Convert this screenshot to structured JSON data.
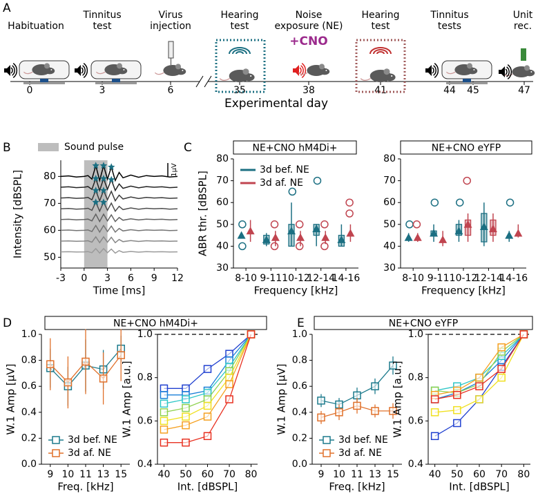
{
  "panel_labels": [
    "A",
    "B",
    "C",
    "D",
    "E"
  ],
  "timeline": {
    "stages": [
      [
        "Habituation"
      ],
      [
        "Tinnitus",
        "test"
      ],
      [
        "Virus",
        "injection"
      ],
      [
        "Hearing",
        "test"
      ],
      [
        "Noise",
        "exposure (NE)"
      ],
      [
        "Hearing",
        "test"
      ],
      [
        "Tinnitus",
        "tests"
      ],
      [
        "Unit",
        "rec."
      ]
    ],
    "cno_label": "+CNO",
    "ticks": [
      "0",
      "3",
      "6",
      "35",
      "38",
      "41",
      "44",
      "45",
      "47"
    ],
    "axis_label": "Experimental day"
  },
  "chart_data": [
    {
      "type": "line",
      "x": [
        -3,
        -2,
        -1,
        0,
        0.5,
        1,
        1.5,
        2,
        2.5,
        3,
        3.5,
        4,
        4.5,
        5,
        6,
        7,
        8,
        9,
        10,
        11,
        12
      ],
      "series": [
        {
          "color": "#000000",
          "values": [
            80,
            80.2,
            79.8,
            80,
            80.3,
            79,
            84,
            78.5,
            84,
            79,
            83.5,
            78.5,
            81.5,
            79.5,
            80.5,
            79.7,
            80.3,
            80,
            80.2,
            79.8,
            80
          ]
        },
        {
          "color": "#222222",
          "values": [
            76,
            76.16,
            75.84,
            76,
            76.24,
            75.2,
            79.2,
            74.8,
            79.2,
            75.2,
            78.8,
            74.8,
            77.2,
            75.6,
            76.4,
            75.76,
            76.24,
            76,
            76.16,
            75.84,
            76
          ]
        },
        {
          "color": "#3a3a3a",
          "values": [
            72,
            72.14,
            71.86,
            72,
            72.21,
            71.3,
            74.8,
            70.95,
            74.8,
            71.3,
            74.45,
            70.95,
            73.05,
            71.65,
            72.35,
            71.79,
            72.21,
            72,
            72.14,
            71.86,
            72
          ]
        },
        {
          "color": "#4d4d4d",
          "values": [
            68,
            68.12,
            67.88,
            68,
            68.18,
            67.4,
            70.4,
            67.1,
            70.4,
            67.4,
            70.1,
            67.1,
            68.9,
            67.7,
            68.3,
            67.82,
            68.18,
            68,
            68.12,
            67.88,
            68
          ]
        },
        {
          "color": "#606060",
          "values": [
            64,
            64.1,
            63.9,
            64,
            64.15,
            63.5,
            66,
            63.25,
            66,
            63.5,
            65.75,
            63.25,
            64.75,
            63.75,
            64.25,
            63.85,
            64.15,
            64,
            64.1,
            63.9,
            64
          ]
        },
        {
          "color": "#737373",
          "values": [
            60,
            60.09,
            59.91,
            60,
            60.14,
            59.55,
            61.8,
            59.33,
            61.8,
            59.55,
            61.58,
            59.33,
            60.68,
            59.78,
            60.23,
            59.87,
            60.14,
            60,
            60.09,
            59.91,
            60
          ]
        },
        {
          "color": "#868686",
          "values": [
            56,
            56.08,
            55.92,
            56,
            56.12,
            55.6,
            57.6,
            55.4,
            57.6,
            55.6,
            57.4,
            55.4,
            56.6,
            55.8,
            56.2,
            55.88,
            56.12,
            56,
            56.08,
            55.92,
            56
          ]
        },
        {
          "color": "#9a9a9a",
          "values": [
            52,
            52.06,
            51.94,
            52,
            52.09,
            51.7,
            53.2,
            51.55,
            53.2,
            51.7,
            53.05,
            51.55,
            52.45,
            51.85,
            52.15,
            51.91,
            52.09,
            52,
            52.06,
            51.94,
            52
          ]
        }
      ],
      "peaks": {
        "color": "#1b6f82",
        "x": [
          1.5,
          2.5,
          3.5,
          1.5,
          2.5,
          3.5,
          1.5,
          2.5,
          1.5,
          2.5
        ],
        "y": [
          84,
          84,
          83.5,
          79.2,
          79.2,
          78.8,
          74.8,
          74.8,
          70.4,
          70.4
        ]
      },
      "shaded_region": {
        "range": [
          0,
          3
        ],
        "label": "Sound pulse",
        "color": "#bdbdbd"
      },
      "scale_bar_label": "1µV",
      "xlim": [
        -3,
        12
      ],
      "ylim": [
        46,
        86
      ],
      "xticks": [
        -3,
        0,
        3,
        6,
        9,
        12
      ],
      "yticks": [
        50,
        60,
        70,
        80
      ],
      "xlabel": "Time [ms]",
      "ylabel": "Intensity [dBSPL]"
    },
    {
      "type": "box",
      "title": "NE+CNO hM4Di+",
      "categories": [
        "8-10",
        "9-11",
        "10-12",
        "12-14",
        "14-16"
      ],
      "series": [
        {
          "name": "3d bef. NE",
          "color": "#1b6f82",
          "means": [
            45,
            43,
            47,
            48,
            43
          ],
          "box_low": [
            null,
            41,
            40,
            45,
            40
          ],
          "box_high": [
            null,
            45,
            50,
            50,
            45
          ],
          "whisker_low": [
            null,
            40,
            40,
            40,
            40
          ],
          "whisker_high": [
            null,
            46,
            60,
            50,
            50
          ],
          "outliers": [
            [
              40,
              50
            ],
            [],
            [
              65
            ],
            [
              70
            ],
            []
          ]
        },
        {
          "name": "3d af. NE",
          "color": "#c0444f",
          "means": [
            47,
            44,
            44,
            44,
            46
          ],
          "box_low": [
            null,
            null,
            null,
            null,
            null
          ],
          "box_high": [
            null,
            null,
            null,
            null,
            null
          ],
          "whisker_low": [
            42,
            40,
            40,
            41,
            42
          ],
          "whisker_high": [
            52,
            47,
            47,
            47,
            50
          ],
          "outliers": [
            [],
            [
              40,
              50
            ],
            [
              40,
              50
            ],
            [
              40,
              50
            ],
            [
              55,
              60
            ]
          ]
        }
      ],
      "legend": "upper left",
      "ylim": [
        30,
        80
      ],
      "yticks": [
        30,
        40,
        50,
        60,
        70,
        80
      ],
      "xlabel": "Frequency [kHz]",
      "ylabel": "ABR thr. [dBSPL]"
    },
    {
      "type": "box",
      "title": "NE+CNO eYFP",
      "categories": [
        "8-10",
        "9-11",
        "10-12",
        "12-14",
        "14-16"
      ],
      "series": [
        {
          "color": "#1b6f82",
          "means": [
            44,
            46,
            47,
            49,
            45
          ],
          "box_low": [
            null,
            45,
            45,
            42,
            null
          ],
          "box_high": [
            null,
            47,
            50,
            55,
            null
          ],
          "whisker_low": [
            42,
            42,
            42,
            40,
            42
          ],
          "whisker_high": [
            46,
            50,
            52,
            60,
            47
          ],
          "outliers": [
            [
              50
            ],
            [
              60
            ],
            [
              60
            ],
            [],
            [
              60
            ]
          ]
        },
        {
          "color": "#c0444f",
          "means": [
            44,
            43,
            50,
            48,
            46
          ],
          "box_low": [
            null,
            null,
            45,
            45,
            null
          ],
          "box_high": [
            null,
            null,
            52,
            52,
            null
          ],
          "whisker_low": [
            42,
            40,
            42,
            42,
            44
          ],
          "whisker_high": [
            46,
            47,
            55,
            55,
            50
          ],
          "outliers": [
            [
              50
            ],
            [],
            [
              70
            ],
            [],
            []
          ]
        }
      ],
      "ylim": [
        30,
        80
      ],
      "yticks": [
        30,
        40,
        50,
        60,
        70,
        80
      ],
      "xlabel": "Frequency [kHz]"
    },
    {
      "type": "line",
      "title": "NE+CNO hM4Di+",
      "marker": "square",
      "categories": [
        "9",
        "10",
        "11",
        "13",
        "15"
      ],
      "series": [
        {
          "name": "3d bef. NE",
          "color": "#1b7a8c",
          "values": [
            0.74,
            0.6,
            0.76,
            0.73,
            0.89
          ],
          "errors": [
            0.15,
            0.15,
            0.2,
            0.15,
            0.1
          ]
        },
        {
          "name": "3d af. NE",
          "color": "#e0702a",
          "values": [
            0.77,
            0.63,
            0.79,
            0.66,
            0.84
          ],
          "errors": [
            0.2,
            0.2,
            0.25,
            0.2,
            0.2
          ]
        }
      ],
      "legend": "lower left",
      "ylim": [
        0,
        1
      ],
      "yticks": [
        {
          "value": 0,
          "label": "0.0"
        },
        0.2,
        0.4,
        0.6,
        0.8,
        {
          "value": 1,
          "label": "1.0"
        }
      ],
      "xlabel": "Freq. [kHz]",
      "ylabel": "W.1 Amp [µV]"
    },
    {
      "type": "line",
      "marker": "square",
      "x": [
        40,
        50,
        60,
        70,
        80
      ],
      "series": [
        {
          "color": "#2040d0",
          "values": [
            0.75,
            0.75,
            0.84,
            0.91,
            1
          ]
        },
        {
          "color": "#1a80d8",
          "values": [
            0.72,
            0.72,
            0.74,
            0.88,
            1
          ]
        },
        {
          "color": "#2cc6c6",
          "values": [
            0.68,
            0.7,
            0.73,
            0.85,
            1
          ]
        },
        {
          "color": "#8fd14f",
          "values": [
            0.64,
            0.66,
            0.7,
            0.83,
            1
          ]
        },
        {
          "color": "#f0e020",
          "values": [
            0.6,
            0.62,
            0.67,
            0.8,
            1
          ]
        },
        {
          "color": "#f5a020",
          "values": [
            0.56,
            0.58,
            0.62,
            0.77,
            1
          ]
        },
        {
          "color": "#e83020",
          "values": [
            0.5,
            0.5,
            0.53,
            0.7,
            1
          ]
        }
      ],
      "reference_line": 1,
      "xlim": [
        37,
        83
      ],
      "xticks": [
        40,
        50,
        60,
        70,
        80
      ],
      "ylim": [
        0.4,
        1
      ],
      "yticks": [
        0.4,
        0.6,
        0.8,
        {
          "value": 1,
          "label": "1.0"
        }
      ],
      "xlabel": "Int. [dBSPL]",
      "ylabel": "W.1 Amp [a.u.]"
    },
    {
      "type": "line",
      "title": "NE+CNO eYFP",
      "marker": "square",
      "categories": [
        "9",
        "10",
        "11",
        "13",
        "15"
      ],
      "series": [
        {
          "name": "3d bef. NE",
          "color": "#1b7a8c",
          "values": [
            0.49,
            0.46,
            0.53,
            0.6,
            0.76
          ],
          "errors": [
            0.05,
            0.05,
            0.06,
            0.06,
            0.07
          ]
        },
        {
          "name": "3d af. NE",
          "color": "#e0702a",
          "values": [
            0.36,
            0.4,
            0.45,
            0.41,
            0.41
          ],
          "errors": [
            0.05,
            0.06,
            0.06,
            0.05,
            0.06
          ]
        }
      ],
      "legend": "lower left",
      "ylim": [
        0,
        1
      ],
      "yticks": [
        {
          "value": 0,
          "label": "0.0"
        },
        0.2,
        0.4,
        0.6,
        0.8,
        {
          "value": 1,
          "label": "1.0"
        }
      ],
      "xlabel": "Freq. [kHz]",
      "ylabel": "W.1 Amp [µV]"
    },
    {
      "type": "line",
      "marker": "square",
      "x": [
        40,
        50,
        60,
        70,
        80
      ],
      "series": [
        {
          "color": "#2040d0",
          "values": [
            0.53,
            0.59,
            0.7,
            0.85,
            1
          ]
        },
        {
          "color": "#1a80d8",
          "values": [
            0.7,
            0.73,
            0.78,
            0.88,
            1
          ]
        },
        {
          "color": "#2cc6c6",
          "values": [
            0.74,
            0.76,
            0.8,
            0.9,
            1
          ]
        },
        {
          "color": "#8fd14f",
          "values": [
            0.74,
            0.73,
            0.77,
            0.92,
            1
          ]
        },
        {
          "color": "#f0e020",
          "values": [
            0.64,
            0.65,
            0.7,
            0.8,
            1
          ]
        },
        {
          "color": "#f5a020",
          "values": [
            0.72,
            0.74,
            0.8,
            0.94,
            1
          ]
        },
        {
          "color": "#e83020",
          "values": [
            0.7,
            0.72,
            0.76,
            0.84,
            1
          ]
        }
      ],
      "reference_line": 1,
      "xlim": [
        37,
        83
      ],
      "xticks": [
        40,
        50,
        60,
        70,
        80
      ],
      "ylim": [
        0.4,
        1
      ],
      "yticks": [
        0.4,
        0.6,
        0.8,
        {
          "value": 1,
          "label": "1.0"
        }
      ],
      "xlabel": "Int. [dBSPL]",
      "ylabel": "W.1 Amp [a.u.]"
    }
  ]
}
